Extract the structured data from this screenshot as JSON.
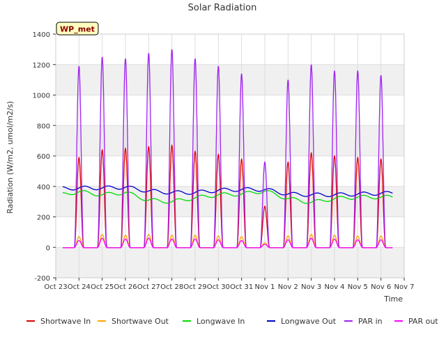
{
  "chart_data": {
    "type": "line",
    "title": "Solar Radiation",
    "xlabel": "Time",
    "ylabel": "Radiation (W/m2, umol/m2/s)",
    "ylim": [
      -200,
      1400
    ],
    "yticks": [
      -200,
      0,
      200,
      400,
      600,
      800,
      1000,
      1200,
      1400
    ],
    "xlim": [
      0,
      15
    ],
    "xtick_labels": [
      "Oct 23",
      "Oct 24",
      "Oct 25",
      "Oct 26",
      "Oct 27",
      "Oct 28",
      "Oct 29",
      "Oct 30",
      "Oct 31",
      "Nov 1",
      "Nov 2",
      "Nov 3",
      "Nov 4",
      "Nov 5",
      "Nov 6",
      "Nov 7"
    ],
    "grid": true,
    "background_bands": true,
    "legend_position": "bottom",
    "annotation": "WP_met",
    "annotation_bg": "#ffffc0",
    "annotation_color": "#8b0000",
    "day_start": 0.3,
    "day_end": 14.5,
    "series": [
      {
        "name": "Shortwave In",
        "color": "#dd0000",
        "kind": "diurnal",
        "peaks": [
          590,
          640,
          650,
          660,
          670,
          630,
          610,
          580,
          270,
          560,
          620,
          600,
          590,
          580
        ],
        "width": 0.2
      },
      {
        "name": "Shortwave Out",
        "color": "#ffa500",
        "kind": "diurnal",
        "peaks": [
          70,
          85,
          80,
          85,
          80,
          80,
          75,
          70,
          30,
          75,
          85,
          80,
          75,
          75
        ],
        "width": 0.2
      },
      {
        "name": "Longwave In",
        "color": "#00dd00",
        "kind": "daily",
        "values": [
          340,
          365,
          345,
          360,
          310,
          300,
          325,
          345,
          350,
          370,
          320,
          295,
          320,
          330,
          330
        ]
      },
      {
        "name": "Longwave Out",
        "color": "#0000cc",
        "kind": "daily",
        "values": [
          385,
          390,
          390,
          395,
          370,
          360,
          360,
          375,
          380,
          380,
          350,
          345,
          345,
          350,
          355
        ]
      },
      {
        "name": "PAR in",
        "color": "#a020f0",
        "kind": "diurnal",
        "peaks": [
          1190,
          1250,
          1240,
          1275,
          1300,
          1240,
          1190,
          1140,
          560,
          1100,
          1200,
          1160,
          1160,
          1130
        ],
        "width": 0.2
      },
      {
        "name": "PAR out",
        "color": "#ff00ff",
        "kind": "diurnal",
        "peaks": [
          45,
          60,
          55,
          60,
          55,
          55,
          50,
          45,
          20,
          50,
          60,
          55,
          50,
          50
        ],
        "width": 0.2
      }
    ]
  }
}
